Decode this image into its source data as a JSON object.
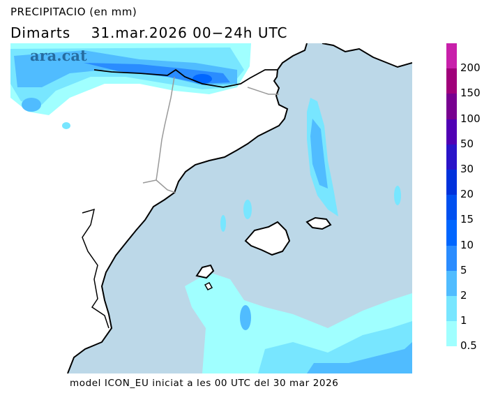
{
  "header": {
    "title": "PRECIPITACIO (en mm)",
    "subtitle": "Dimarts    31.mar.2026 00−24h UTC"
  },
  "watermark": "ara.cat",
  "caption": "model ICON_EU iniciat a les 00 UTC del 30 mar 2026",
  "colors": {
    "sea": "#bcd8e8",
    "land": "#ffffff",
    "coast": "#000000",
    "region_border": "#aaaaaa"
  },
  "legend": {
    "unit": "mm",
    "labels": [
      "200",
      "150",
      "100",
      "50",
      "30",
      "20",
      "15",
      "10",
      "5",
      "2",
      "1",
      "0.5"
    ],
    "bins": [
      "#c820aa",
      "#a0007a",
      "#780090",
      "#5000b4",
      "#2a14c8",
      "#0032dc",
      "#0050f0",
      "#0066ff",
      "#2a8cff",
      "#50bcff",
      "#78e6ff",
      "#a0ffff"
    ]
  }
}
